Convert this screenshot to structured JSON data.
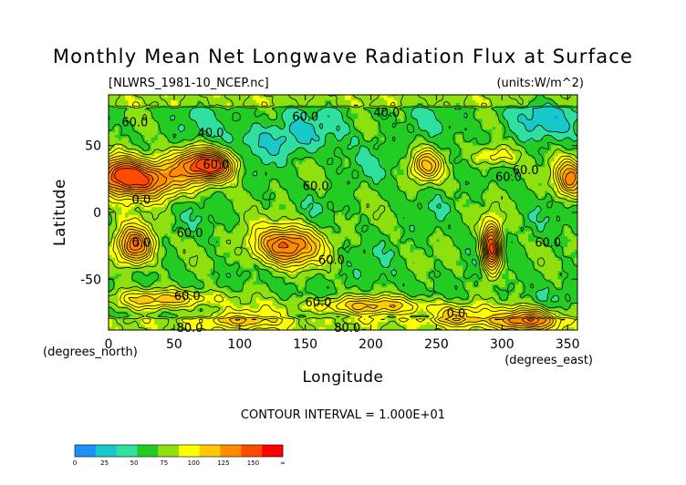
{
  "chart_data": {
    "type": "heatmap",
    "title": "Monthly Mean Net Longwave Radiation Flux at Surface",
    "subtitle_left": "[NLWRS_1981-10_NCEP.nc]",
    "subtitle_right": "(units:W/m^2)",
    "xlabel": "Longitude",
    "ylabel": "Latitude",
    "x_unit": "(degrees_east)",
    "y_unit": "(degrees_north)",
    "xlim": [
      0,
      357.5
    ],
    "ylim": [
      -88,
      88
    ],
    "x_ticks": [
      0,
      50,
      100,
      150,
      200,
      250,
      300,
      350
    ],
    "y_ticks": [
      -50,
      0,
      50
    ],
    "contour_interval_text": "CONTOUR INTERVAL = 1.000E+01",
    "colorbar": {
      "ticks": [
        "0",
        "25",
        "50",
        "75",
        "100",
        "125",
        "150",
        "∞"
      ],
      "colors": [
        "#1e90ff",
        "#19c8c8",
        "#2fe0a0",
        "#22cc22",
        "#8ee00e",
        "#ffff00",
        "#ffc800",
        "#ff8c00",
        "#ff4a00",
        "#ff0000"
      ],
      "breaks": [
        0,
        25,
        50,
        75,
        100,
        125,
        150,
        200
      ]
    },
    "contour_labels": [
      {
        "text": "60.0",
        "lon": 20,
        "lat": 68
      },
      {
        "text": "40.0",
        "lon": 78,
        "lat": 60
      },
      {
        "text": "40.0",
        "lon": 212,
        "lat": 75
      },
      {
        "text": "60.0",
        "lon": 150,
        "lat": 72
      },
      {
        "text": "60.0",
        "lon": 82,
        "lat": 36
      },
      {
        "text": "60.0",
        "lon": 305,
        "lat": 27
      },
      {
        "text": "60.0",
        "lon": 318,
        "lat": 32
      },
      {
        "text": "60.0",
        "lon": 158,
        "lat": 20
      },
      {
        "text": "0.0",
        "lon": 25,
        "lat": 10
      },
      {
        "text": "60.0",
        "lon": 62,
        "lat": -15
      },
      {
        "text": "0.0",
        "lon": 25,
        "lat": -22
      },
      {
        "text": "60.0",
        "lon": 170,
        "lat": -35
      },
      {
        "text": "60.0",
        "lon": 335,
        "lat": -22
      },
      {
        "text": "60.0",
        "lon": 60,
        "lat": -62
      },
      {
        "text": "60.0",
        "lon": 160,
        "lat": -67
      },
      {
        "text": "80.0",
        "lon": 62,
        "lat": -86
      },
      {
        "text": "80.0",
        "lon": 182,
        "lat": -86
      },
      {
        "text": "0.0",
        "lon": 265,
        "lat": -75
      }
    ],
    "field_features": [
      {
        "lon": 28,
        "lat": 25,
        "amp": 95,
        "sx": 22,
        "sy": 10
      },
      {
        "lon": 8,
        "lat": 30,
        "amp": 60,
        "sx": 12,
        "sy": 10
      },
      {
        "lon": 80,
        "lat": 35,
        "amp": 100,
        "sx": 12,
        "sy": 8
      },
      {
        "lon": 62,
        "lat": 38,
        "amp": 40,
        "sx": 10,
        "sy": 8
      },
      {
        "lon": 20,
        "lat": -25,
        "amp": 95,
        "sx": 10,
        "sy": 10
      },
      {
        "lon": 135,
        "lat": -25,
        "amp": 95,
        "sx": 18,
        "sy": 10
      },
      {
        "lon": 292,
        "lat": -27,
        "amp": 110,
        "sx": 5,
        "sy": 13
      },
      {
        "lon": 242,
        "lat": 35,
        "amp": 60,
        "sx": 8,
        "sy": 8
      },
      {
        "lon": 352,
        "lat": 25,
        "amp": 75,
        "sx": 8,
        "sy": 10
      },
      {
        "lon": 295,
        "lat": 42,
        "amp": 35,
        "sx": 12,
        "sy": 6
      },
      {
        "lon": 45,
        "lat": -65,
        "amp": 50,
        "sx": 30,
        "sy": 5
      },
      {
        "lon": 200,
        "lat": -70,
        "amp": 50,
        "sx": 40,
        "sy": 5
      },
      {
        "lon": 320,
        "lat": -80,
        "amp": 80,
        "sx": 18,
        "sy": 6
      },
      {
        "lon": 100,
        "lat": -80,
        "amp": 40,
        "sx": 25,
        "sy": 5
      },
      {
        "lon": 265,
        "lat": -78,
        "amp": 50,
        "sx": 15,
        "sy": 5
      },
      {
        "lon": 130,
        "lat": 55,
        "amp": -20,
        "sx": 30,
        "sy": 10
      },
      {
        "lon": 330,
        "lat": 70,
        "amp": -20,
        "sx": 20,
        "sy": 10
      }
    ]
  }
}
